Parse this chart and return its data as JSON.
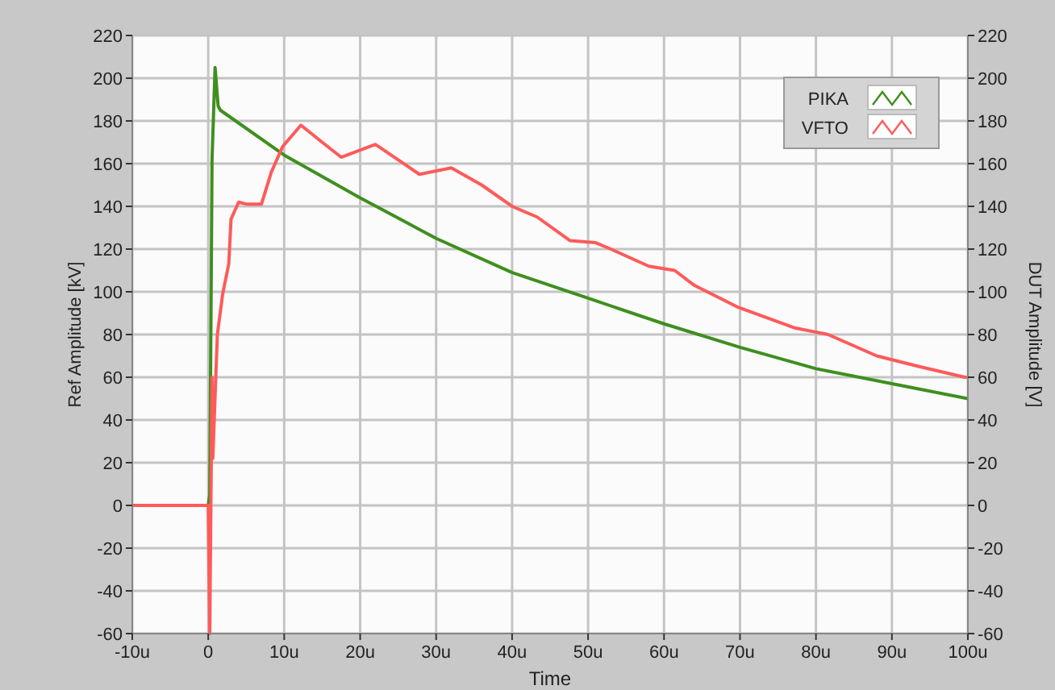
{
  "chart_data": {
    "type": "line",
    "xlabel": "Time",
    "ylabel": "Ref Amplitude [kV]",
    "y2label": "DUT Amplitude [V]",
    "xlim": [
      -10,
      100
    ],
    "xticks": [
      {
        "value": -10,
        "label": "-10u"
      },
      0,
      {
        "value": 10,
        "label": "10u"
      },
      {
        "value": 20,
        "label": "20u"
      },
      {
        "value": 30,
        "label": "30u"
      },
      {
        "value": 40,
        "label": "40u"
      },
      {
        "value": 50,
        "label": "50u"
      },
      {
        "value": 60,
        "label": "60u"
      },
      {
        "value": 70,
        "label": "70u"
      },
      {
        "value": 80,
        "label": "80u"
      },
      {
        "value": 90,
        "label": "90u"
      },
      {
        "value": 100,
        "label": "100u"
      }
    ],
    "ylim": [
      -60,
      220
    ],
    "yticks": [
      -60,
      -40,
      -20,
      0,
      20,
      40,
      60,
      80,
      100,
      120,
      140,
      160,
      180,
      200,
      220
    ],
    "y2lim": [
      -60,
      220
    ],
    "y2ticks": [
      -60,
      -40,
      -20,
      0,
      20,
      40,
      60,
      80,
      100,
      120,
      140,
      160,
      180,
      200,
      220
    ],
    "grid": true,
    "legend": "top right",
    "line_style": "solid",
    "marker": "none",
    "series": [
      {
        "name": "PIKA",
        "color": "#3f8f1f",
        "x": [
          -10,
          0,
          0.2,
          0.5,
          0.9,
          1.3,
          1.6,
          10,
          20,
          30,
          40,
          50,
          60,
          70,
          80,
          90,
          100
        ],
        "values": [
          0,
          0,
          5,
          162,
          205,
          187,
          185,
          164,
          144,
          125,
          109,
          97,
          85,
          74,
          64,
          57,
          50
        ]
      },
      {
        "name": "VFTO",
        "color": "#ff5a5a",
        "x": [
          -10,
          0,
          0.2,
          0.4,
          0.5,
          0.6,
          1.2,
          1.9,
          2.7,
          3,
          4,
          5.1,
          7,
          8.3,
          9.8,
          12.2,
          15,
          17.5,
          22,
          27.8,
          32,
          36,
          40,
          43.3,
          47.6,
          51,
          53,
          58,
          61.4,
          64,
          69.6,
          77.3,
          81.6,
          88,
          93.6,
          99.6,
          100
        ],
        "values": [
          0,
          0,
          -60,
          20,
          60,
          22,
          80,
          99,
          113,
          134,
          142,
          141,
          141,
          156,
          168,
          178,
          170,
          163,
          169,
          155,
          158,
          150,
          140,
          135,
          124,
          123,
          120,
          112,
          110,
          103,
          93,
          83,
          80,
          70,
          65,
          60,
          60
        ]
      }
    ]
  }
}
